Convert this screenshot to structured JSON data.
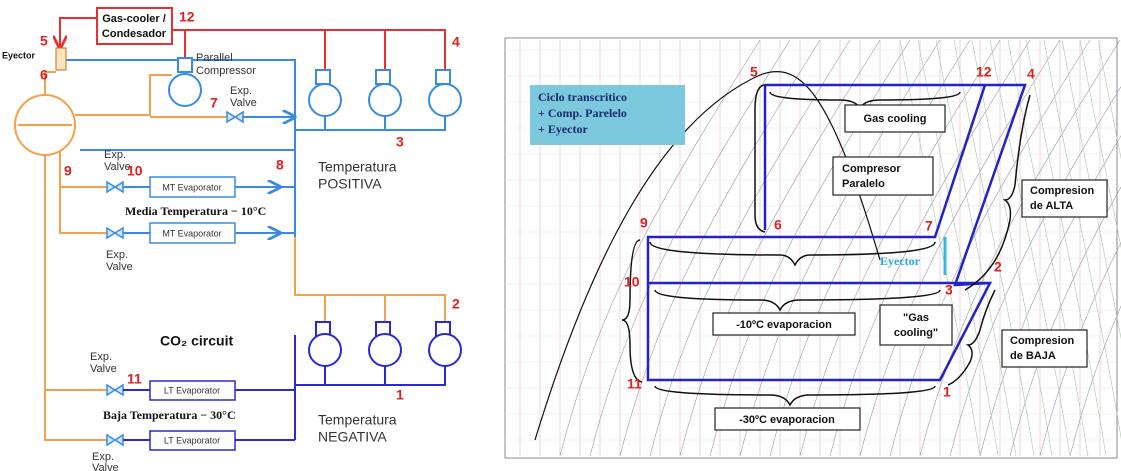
{
  "circuit": {
    "gas_cooler": [
      "Gas-cooler /",
      "Condesador"
    ],
    "eyector": "Eyector",
    "parallel_compressor": [
      "Parallel",
      "Compressor"
    ],
    "exp_valves": [
      [
        "Exp.",
        "Valve"
      ],
      [
        "Exp.",
        "Valve"
      ],
      [
        "Exp.",
        "Valve"
      ],
      [
        "Exp.",
        "Valve"
      ],
      [
        "Exp.",
        "Valve"
      ]
    ],
    "mt_evaporators": [
      "MT Evaporator",
      "MT Evaporator"
    ],
    "lt_evaporators": [
      "LT Evaporator",
      "LT Evaporator"
    ],
    "media_temperatura": "Media Temperatura  − 10°C",
    "baja_temperatura": "Baja Temperatura  − 30°C",
    "temperatura_positiva": [
      "Temperatura",
      "POSITIVA"
    ],
    "temperatura_negativa": [
      "Temperatura",
      "NEGATIVA"
    ],
    "co2_circuit": "CO₂ circuit",
    "points": [
      "12",
      "5",
      "6",
      "4",
      "7",
      "3",
      "8",
      "9",
      "10",
      "2",
      "11",
      "1"
    ]
  },
  "ph_diagram": {
    "title": [
      "Ciclo transcritico",
      "+ Comp. Parelelo",
      "+ Eyector"
    ],
    "gas_cooling": "Gas cooling",
    "compresor_paralelo": [
      "Compresor",
      "Paralelo"
    ],
    "compresion_alta": [
      "Compresion",
      "de ALTA"
    ],
    "eyector": "Eyector",
    "evap_10": "-10ºC evaporacion",
    "gas_cooling_low": [
      "\"Gas",
      "cooling\""
    ],
    "compresion_baja": [
      "Compresion",
      "de BAJA"
    ],
    "evap_30": "-30ºC evaporacion",
    "points": [
      "5",
      "12",
      "4",
      "6",
      "7",
      "9",
      "10",
      "3",
      "2",
      "11",
      "1"
    ]
  }
}
